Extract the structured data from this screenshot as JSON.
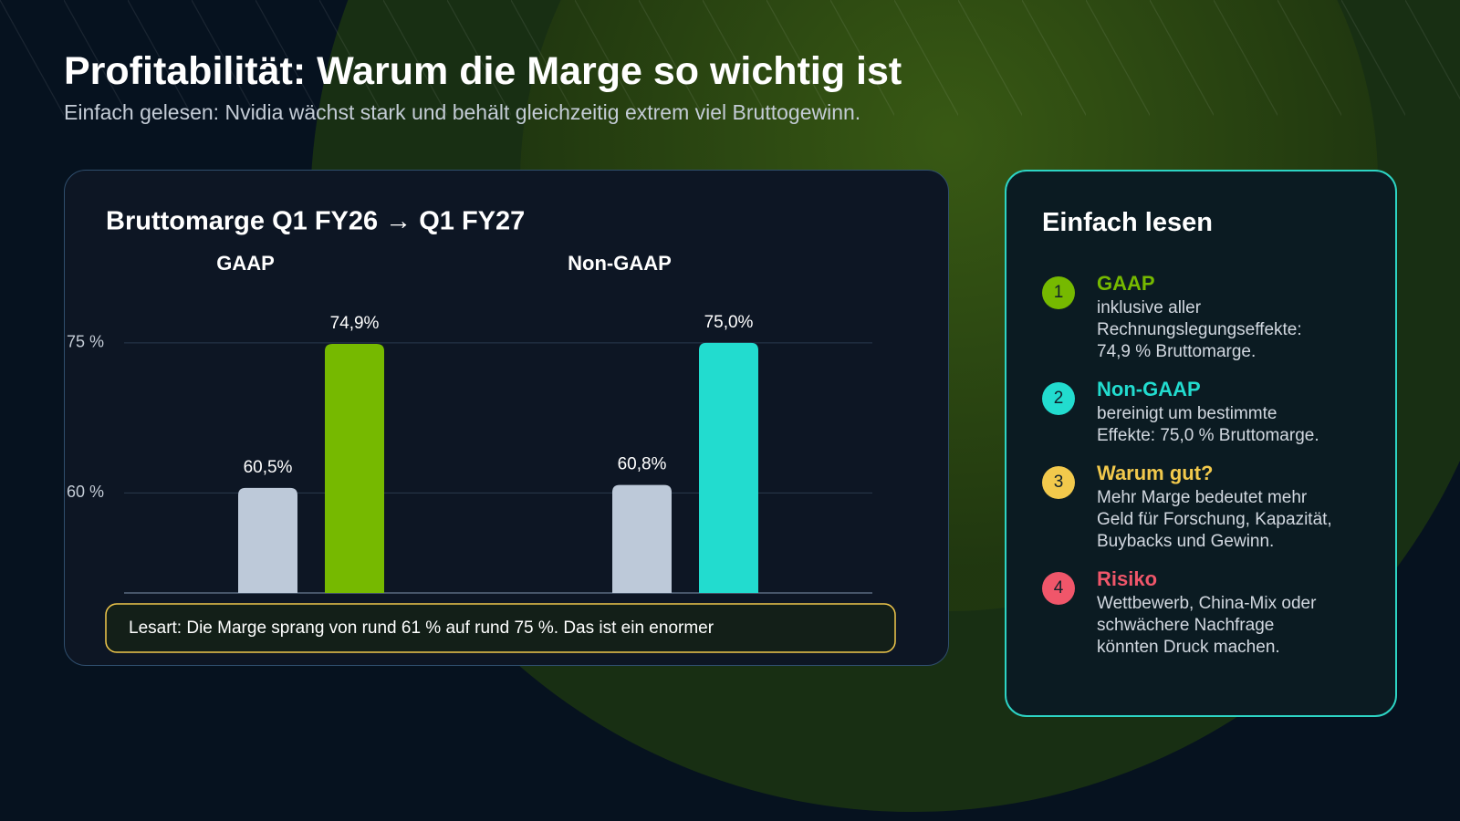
{
  "header": {
    "title": "Profitabilität: Warum die Marge so wichtig ist",
    "subtitle": "Einfach gelesen: Nvidia wächst stark und behält gleichzeitig extrem viel Bruttogewinn."
  },
  "chart_data": {
    "type": "bar",
    "title": "Bruttomarge Q1 FY26 → Q1 FY27",
    "categories": [
      "GAAP",
      "Non-GAAP"
    ],
    "series": [
      {
        "color": "#bdc9d9",
        "values": [
          60.5,
          60.8
        ],
        "value_labels": [
          "60,5%",
          "60,8%"
        ]
      },
      {
        "colors": [
          "#76b900",
          "#22dccf"
        ],
        "values": [
          74.9,
          75.0
        ],
        "value_labels": [
          "74,9%",
          "75,0%"
        ]
      }
    ],
    "ylim": [
      50,
      78
    ],
    "yticks": [
      {
        "value": 60,
        "label": "60 %"
      },
      {
        "value": 75,
        "label": "75 %"
      }
    ],
    "grid": true,
    "note": "Lesart: Die Marge sprang von rund 61 % auf rund 75 %. Das ist ein enormer"
  },
  "panel": {
    "title": "Einfach lesen",
    "items": [
      {
        "number": "1",
        "title": "GAAP",
        "color": "#76b900",
        "text": [
          "inklusive aller",
          "Rechnungslegungseffekte:",
          "74,9 % Bruttomarge."
        ]
      },
      {
        "number": "2",
        "title": "Non-GAAP",
        "color": "#22dccf",
        "text": [
          "bereinigt um bestimmte",
          "Effekte: 75,0 % Bruttomarge."
        ]
      },
      {
        "number": "3",
        "title": "Warum gut?",
        "color": "#f2c94c",
        "text": [
          "Mehr Marge bedeutet mehr",
          "Geld für Forschung, Kapazität,",
          "Buybacks und Gewinn."
        ]
      },
      {
        "number": "4",
        "title": "Risiko",
        "color": "#f0566a",
        "text": [
          "Wettbewerb, China-Mix oder",
          "schwächere Nachfrage",
          "könnten Druck machen."
        ]
      }
    ]
  }
}
